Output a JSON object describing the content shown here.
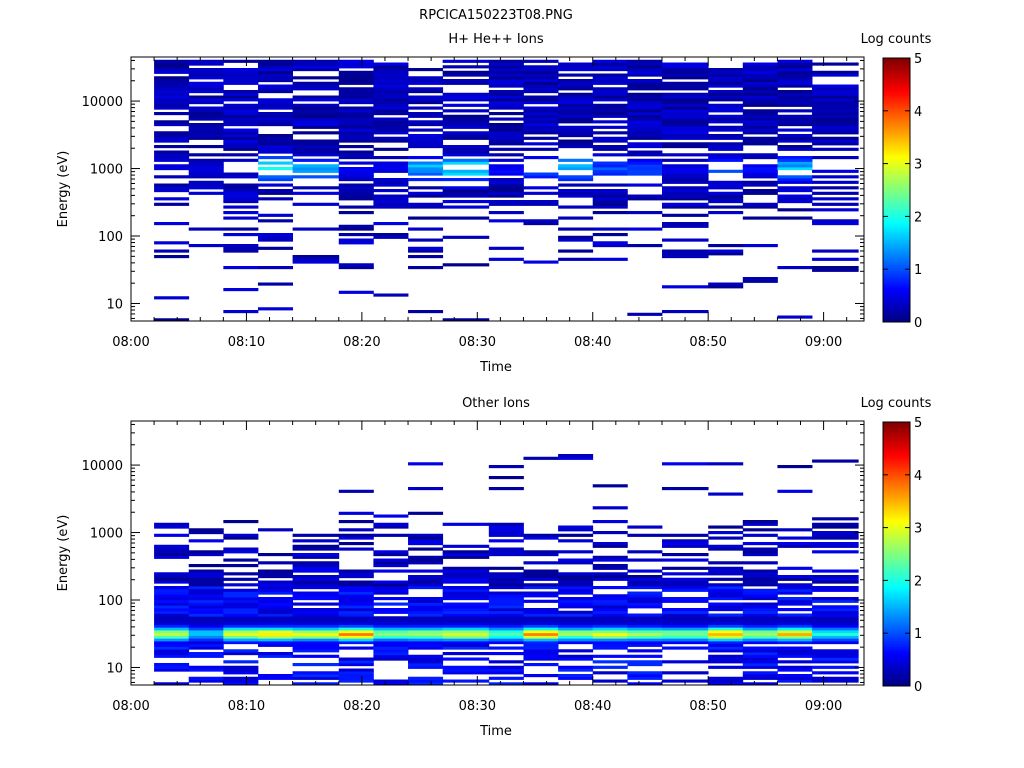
{
  "figure": {
    "filename": "RPCICA150223T08.PNG"
  },
  "colorbar": {
    "label": "Log counts",
    "ticks": [
      0,
      1,
      2,
      3,
      4,
      5
    ],
    "tick_labels": [
      "0",
      "1",
      "2",
      "3",
      "4",
      "5"
    ],
    "range": [
      0,
      5
    ],
    "colormap": "jet"
  },
  "chart_data": [
    {
      "type": "heatmap",
      "title": "H+ He++ Ions",
      "xlabel": "Time",
      "ylabel": "Energy (eV)",
      "x_ticks": [
        "08:00",
        "08:10",
        "08:20",
        "08:30",
        "08:40",
        "08:50",
        "09:00"
      ],
      "x_tick_minutes": [
        0,
        10,
        20,
        30,
        40,
        50,
        60
      ],
      "xlim_minutes": [
        0,
        63.5
      ],
      "y_scale": "log",
      "y_ticks": [
        10,
        100,
        1000,
        10000
      ],
      "y_tick_labels": [
        "10",
        "100",
        "1000",
        "10000"
      ],
      "ylim": [
        5.5,
        45000
      ],
      "columns": [
        {
          "start": "08:02",
          "end": "08:05",
          "max_log_counts": 0.5
        },
        {
          "start": "08:05",
          "end": "08:08",
          "max_log_counts": 0.5
        },
        {
          "start": "08:08",
          "end": "08:11",
          "max_log_counts": 0.5
        },
        {
          "start": "08:11",
          "end": "08:14",
          "max_log_counts": 2.3
        },
        {
          "start": "08:14",
          "end": "08:18",
          "max_log_counts": 1.6
        },
        {
          "start": "08:18",
          "end": "08:21",
          "max_log_counts": 0.7
        },
        {
          "start": "08:21",
          "end": "08:24",
          "max_log_counts": 0.6
        },
        {
          "start": "08:24",
          "end": "08:27",
          "max_log_counts": 1.8
        },
        {
          "start": "08:27",
          "end": "08:31",
          "max_log_counts": 2.2
        },
        {
          "start": "08:31",
          "end": "08:34",
          "max_log_counts": 0.7
        },
        {
          "start": "08:34",
          "end": "08:37",
          "max_log_counts": 1.3
        },
        {
          "start": "08:37",
          "end": "08:40",
          "max_log_counts": 2.0
        },
        {
          "start": "08:40",
          "end": "08:43",
          "max_log_counts": 1.1
        },
        {
          "start": "08:43",
          "end": "08:46",
          "max_log_counts": 1.2
        },
        {
          "start": "08:46",
          "end": "08:50",
          "max_log_counts": 0.6
        },
        {
          "start": "08:50",
          "end": "08:53",
          "max_log_counts": 1.2
        },
        {
          "start": "08:53",
          "end": "08:56",
          "max_log_counts": 0.7
        },
        {
          "start": "08:56",
          "end": "08:59",
          "max_log_counts": 1.8
        },
        {
          "start": "08:59",
          "end": "09:03",
          "max_log_counts": 0.5
        }
      ]
    },
    {
      "type": "heatmap",
      "title": "Other Ions",
      "xlabel": "Time",
      "ylabel": "Energy (eV)",
      "x_ticks": [
        "08:00",
        "08:10",
        "08:20",
        "08:30",
        "08:40",
        "08:50",
        "09:00"
      ],
      "x_tick_minutes": [
        0,
        10,
        20,
        30,
        40,
        50,
        60
      ],
      "xlim_minutes": [
        0,
        63.5
      ],
      "y_scale": "log",
      "y_ticks": [
        10,
        100,
        1000,
        10000
      ],
      "y_tick_labels": [
        "10",
        "100",
        "1000",
        "10000"
      ],
      "ylim": [
        5.5,
        45000
      ],
      "columns": [
        {
          "start": "08:02",
          "end": "08:05",
          "max_log_counts": 2.8
        },
        {
          "start": "08:05",
          "end": "08:08",
          "max_log_counts": 1.5
        },
        {
          "start": "08:08",
          "end": "08:11",
          "max_log_counts": 3.0
        },
        {
          "start": "08:11",
          "end": "08:14",
          "max_log_counts": 3.2
        },
        {
          "start": "08:14",
          "end": "08:18",
          "max_log_counts": 3.0
        },
        {
          "start": "08:18",
          "end": "08:21",
          "max_log_counts": 3.7
        },
        {
          "start": "08:21",
          "end": "08:24",
          "max_log_counts": 2.6
        },
        {
          "start": "08:24",
          "end": "08:27",
          "max_log_counts": 2.6
        },
        {
          "start": "08:27",
          "end": "08:31",
          "max_log_counts": 2.9
        },
        {
          "start": "08:31",
          "end": "08:34",
          "max_log_counts": 2.3
        },
        {
          "start": "08:34",
          "end": "08:37",
          "max_log_counts": 3.6
        },
        {
          "start": "08:37",
          "end": "08:40",
          "max_log_counts": 2.6
        },
        {
          "start": "08:40",
          "end": "08:43",
          "max_log_counts": 2.9
        },
        {
          "start": "08:43",
          "end": "08:46",
          "max_log_counts": 2.5
        },
        {
          "start": "08:46",
          "end": "08:50",
          "max_log_counts": 2.4
        },
        {
          "start": "08:50",
          "end": "08:53",
          "max_log_counts": 3.6
        },
        {
          "start": "08:53",
          "end": "08:56",
          "max_log_counts": 2.6
        },
        {
          "start": "08:56",
          "end": "08:59",
          "max_log_counts": 3.4
        },
        {
          "start": "08:59",
          "end": "09:03",
          "max_log_counts": 1.8
        }
      ]
    }
  ]
}
